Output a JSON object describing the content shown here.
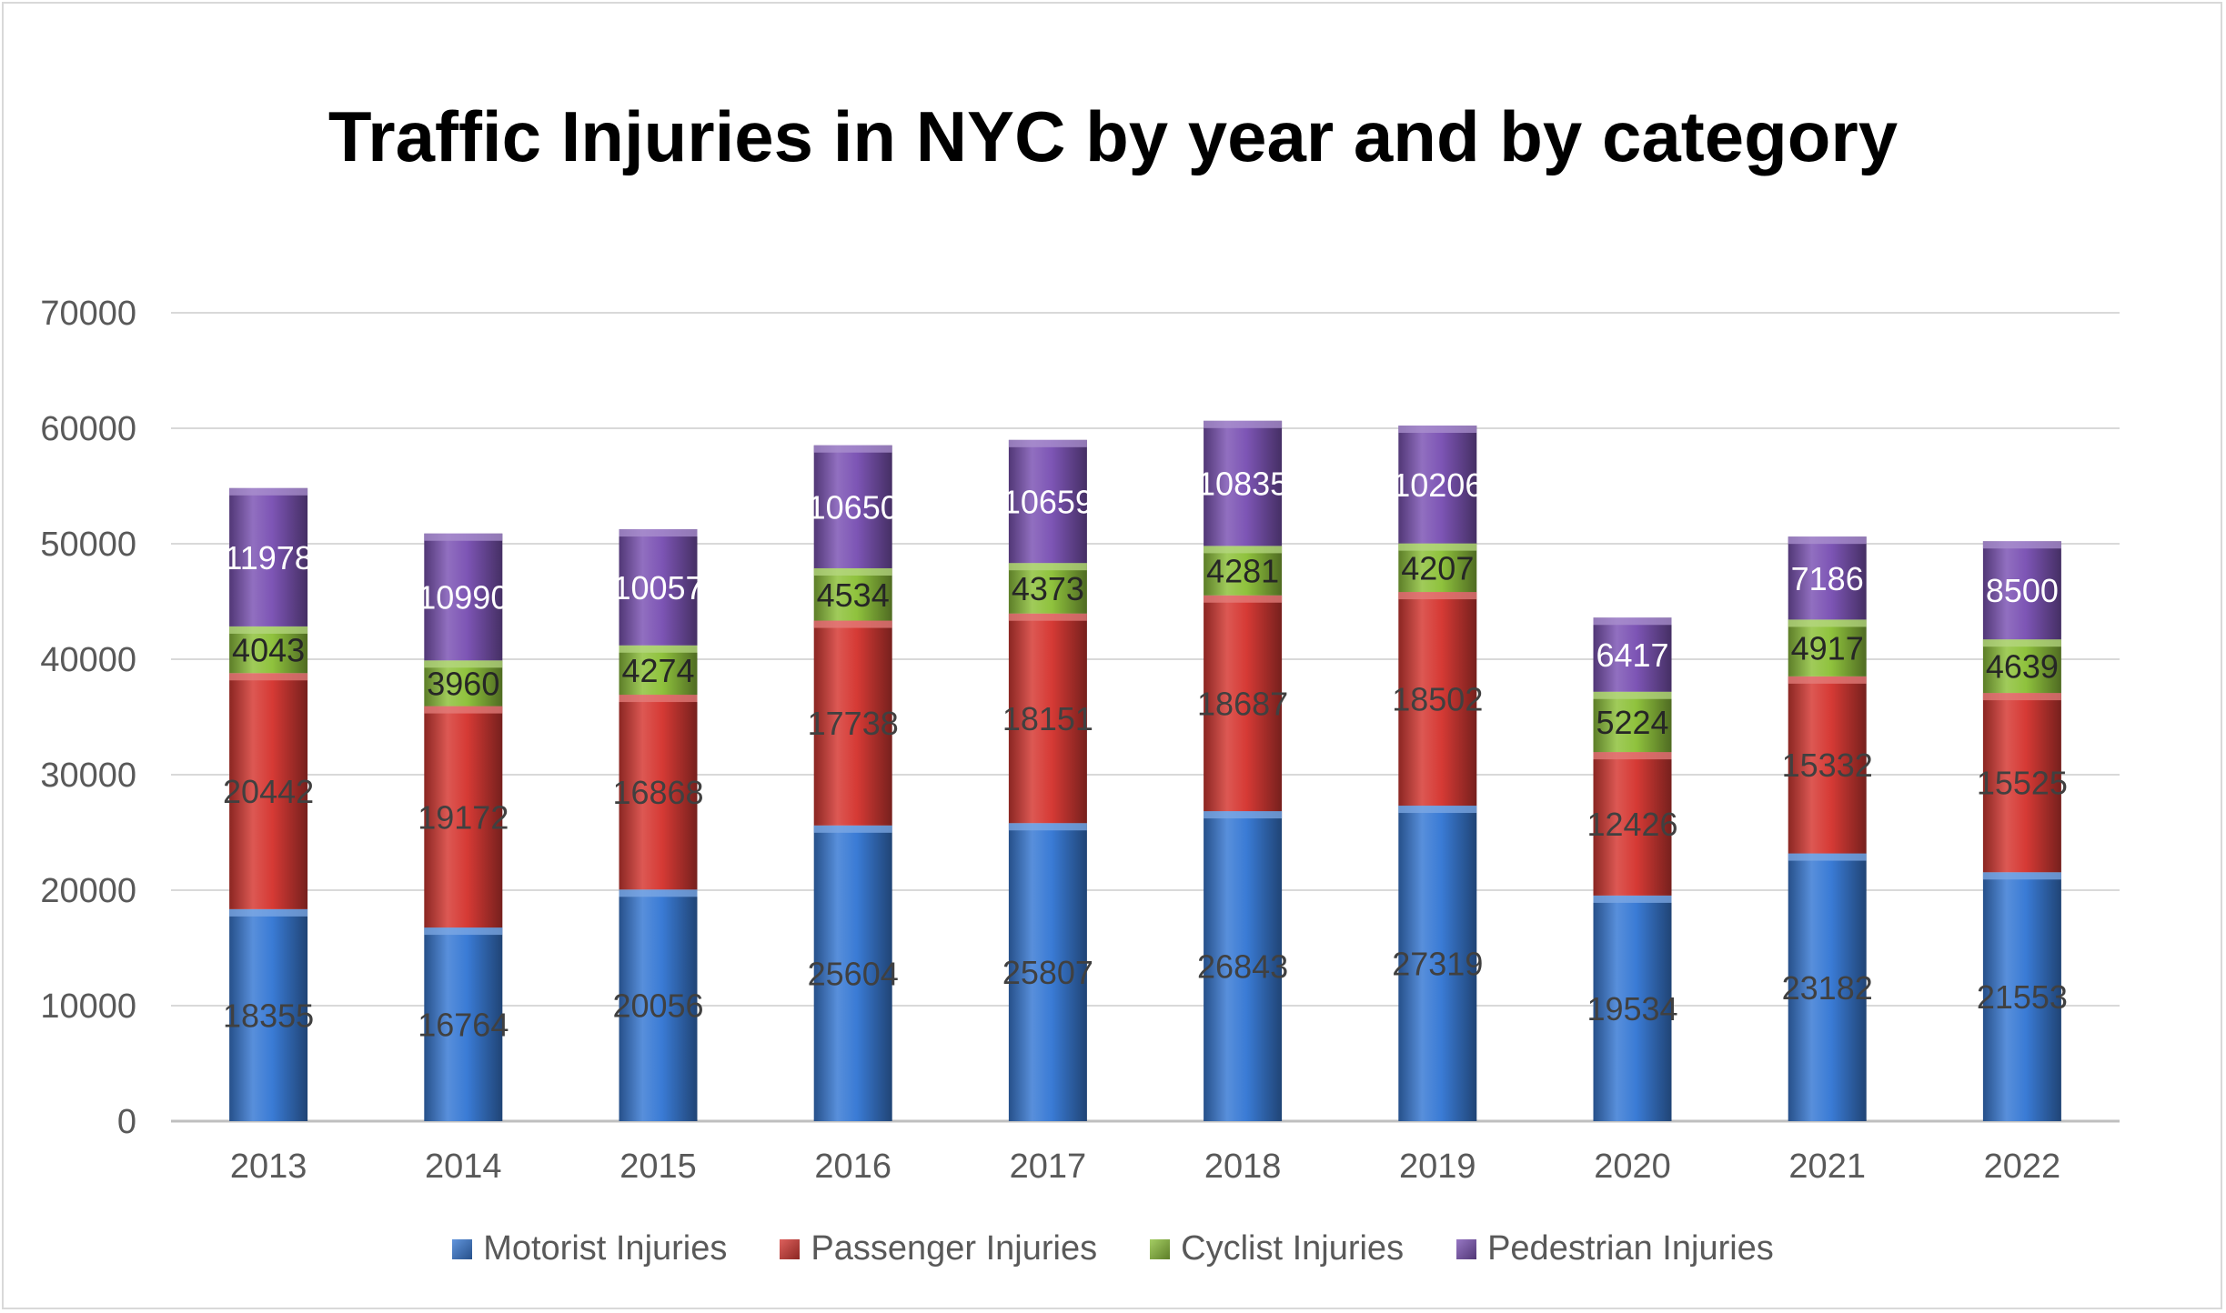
{
  "chart_data": {
    "type": "bar",
    "stacked": true,
    "title": "Traffic Injuries in NYC by year and by category",
    "xlabel": "",
    "ylabel": "",
    "ylim": [
      0,
      70000
    ],
    "yticks": [
      0,
      10000,
      20000,
      30000,
      40000,
      50000,
      60000,
      70000
    ],
    "grid": true,
    "legend_position": "bottom",
    "categories": [
      "2013",
      "2014",
      "2015",
      "2016",
      "2017",
      "2018",
      "2019",
      "2020",
      "2021",
      "2022"
    ],
    "series": [
      {
        "name": "Motorist Injuries",
        "color": "#3a7bd5",
        "values": [
          18355,
          16764,
          20056,
          25604,
          25807,
          26843,
          27319,
          19534,
          23182,
          21553
        ]
      },
      {
        "name": "Passenger Injuries",
        "color": "#d63a35",
        "values": [
          20442,
          19172,
          16868,
          17738,
          18151,
          18687,
          18502,
          12426,
          15332,
          15525
        ]
      },
      {
        "name": "Cyclist Injuries",
        "color": "#8fc23d",
        "values": [
          4043,
          3960,
          4274,
          4534,
          4373,
          4281,
          4207,
          5224,
          4917,
          4639
        ]
      },
      {
        "name": "Pedestrian Injuries",
        "color": "#7d55b5",
        "values": [
          11978,
          10990,
          10057,
          10650,
          10659,
          10835,
          10206,
          6417,
          7186,
          8500
        ]
      }
    ]
  }
}
